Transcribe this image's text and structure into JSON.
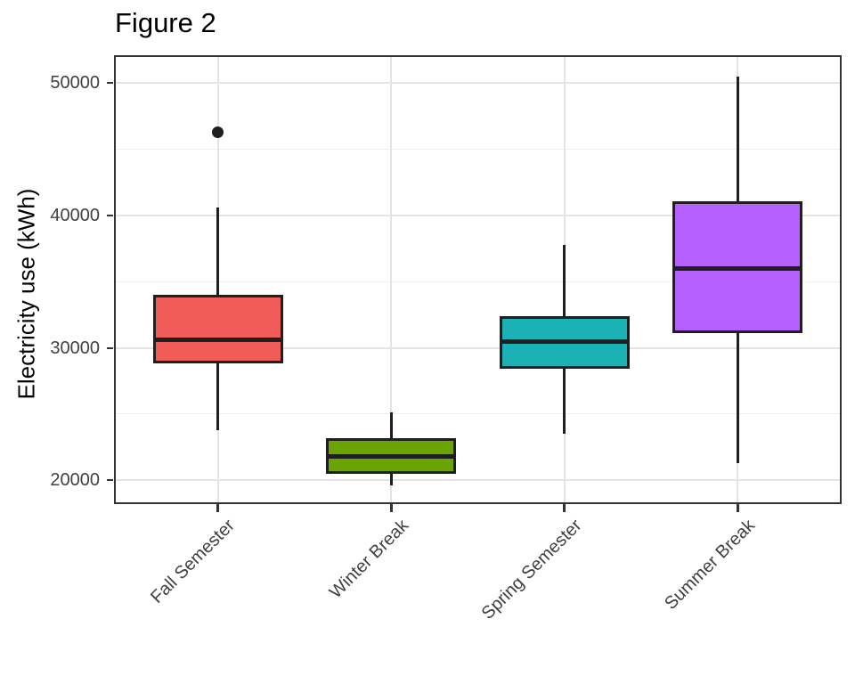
{
  "chart_data": {
    "type": "boxplot",
    "title": "Figure 2",
    "xlabel": "",
    "ylabel": "Electricity use (kWh)",
    "categories": [
      "Fall Semester",
      "Winter Break",
      "Spring Semester",
      "Summer Break"
    ],
    "y_ticks": [
      20000,
      30000,
      40000,
      50000
    ],
    "y_minor_ticks": [
      25000,
      35000,
      45000
    ],
    "ylim": [
      18200,
      52100
    ],
    "grid": true,
    "legend": "none",
    "series": [
      {
        "name": "Fall Semester",
        "min": 23800,
        "q1": 28900,
        "median": 30600,
        "q3": 33900,
        "max": 40600,
        "outliers": [
          46300
        ],
        "fill": "#F25C58"
      },
      {
        "name": "Winter Break",
        "min": 19600,
        "q1": 20600,
        "median": 21800,
        "q3": 23100,
        "max": 25100,
        "outliers": [],
        "fill": "#6AA304"
      },
      {
        "name": "Spring Semester",
        "min": 23500,
        "q1": 28500,
        "median": 30500,
        "q3": 32300,
        "max": 37800,
        "outliers": [],
        "fill": "#1AB2B5"
      },
      {
        "name": "Summer Break",
        "min": 21300,
        "q1": 31200,
        "median": 36000,
        "q3": 41000,
        "max": 50500,
        "outliers": [],
        "fill": "#B661FF"
      }
    ],
    "colors": {
      "box_border": "#1f1f1f",
      "panel_border": "#333333",
      "grid_major": "#e4e4e4",
      "grid_minor": "#efefef",
      "axis_text": "#404040",
      "title_text": "#000000",
      "background": "#ffffff"
    }
  }
}
